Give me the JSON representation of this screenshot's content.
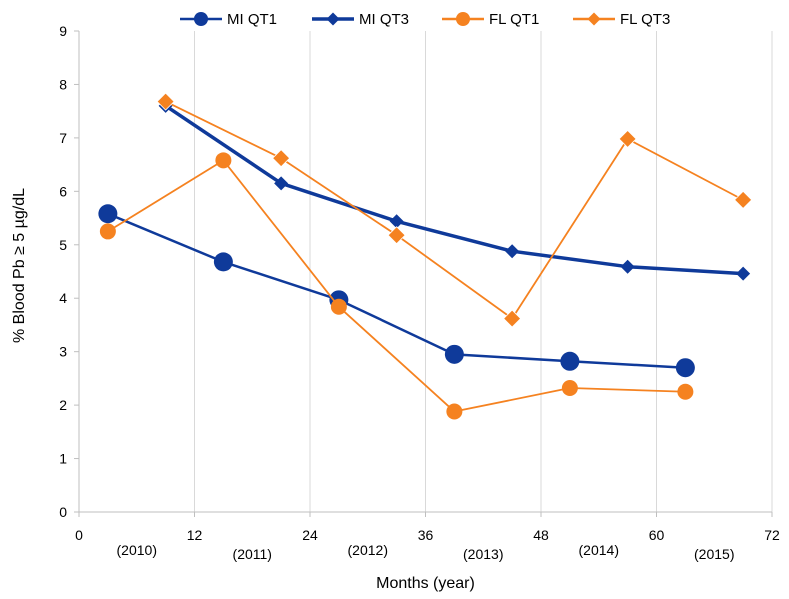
{
  "chart_data": {
    "type": "line",
    "title": "",
    "xlabel": "Months (year)",
    "ylabel": "% Blood Pb ≥ 5 µg/dL",
    "xlim": [
      0,
      72
    ],
    "ylim": [
      0,
      9
    ],
    "x_ticks": [
      0,
      12,
      24,
      36,
      48,
      60,
      72
    ],
    "x_tick_labels": [
      "0",
      "12",
      "24",
      "36",
      "48",
      "60",
      "72"
    ],
    "y_ticks": [
      0,
      1,
      2,
      3,
      4,
      5,
      6,
      7,
      8,
      9
    ],
    "y_tick_labels": [
      "0",
      "1",
      "2",
      "3",
      "4",
      "5",
      "6",
      "7",
      "8",
      "9"
    ],
    "year_labels": [
      {
        "x": 6,
        "text": "(2010)"
      },
      {
        "x": 18,
        "text": "(2011)"
      },
      {
        "x": 30,
        "text": "(2012)"
      },
      {
        "x": 42,
        "text": "(2013)"
      },
      {
        "x": 54,
        "text": "(2014)"
      },
      {
        "x": 66,
        "text": "(2015)"
      }
    ],
    "grid": {
      "vertical": true,
      "horizontal": false
    },
    "legend_position": "top",
    "series": [
      {
        "name": "MI QT1",
        "color": "#0f3a9a",
        "marker": "circle",
        "x": [
          3,
          15,
          27,
          39,
          51,
          63
        ],
        "values": [
          5.58,
          4.68,
          3.97,
          2.95,
          2.82,
          2.7
        ]
      },
      {
        "name": "MI QT3",
        "color": "#0f3a9a",
        "marker": "diamond",
        "x": [
          9,
          21,
          33,
          45,
          57,
          69
        ],
        "values": [
          7.6,
          6.15,
          5.44,
          4.88,
          4.59,
          4.46
        ]
      },
      {
        "name": "FL QT1",
        "color": "#f58220",
        "marker": "circle",
        "x": [
          3,
          15,
          27,
          39,
          51,
          63
        ],
        "values": [
          5.25,
          6.58,
          3.84,
          1.88,
          2.32,
          2.25
        ]
      },
      {
        "name": "FL QT3",
        "color": "#f58220",
        "marker": "diamond",
        "x": [
          9,
          21,
          33,
          45,
          57,
          69
        ],
        "values": [
          7.68,
          6.62,
          5.18,
          3.62,
          6.98,
          5.84
        ]
      }
    ]
  }
}
